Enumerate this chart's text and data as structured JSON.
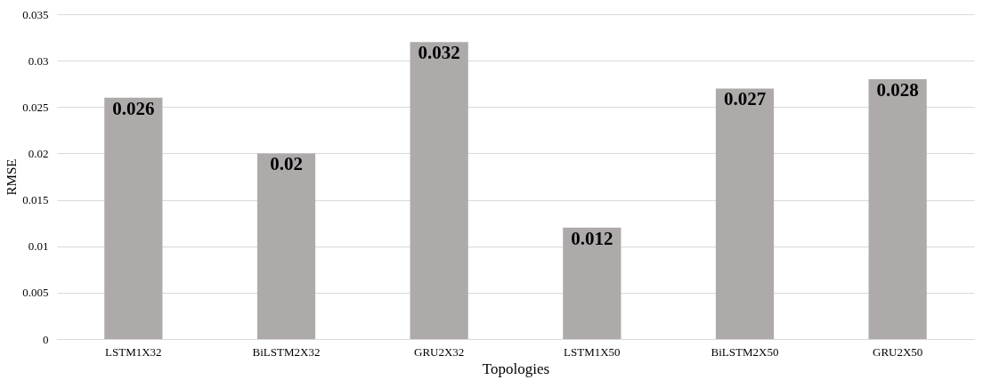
{
  "chart_data": {
    "type": "bar",
    "xlabel": "Topologies",
    "ylabel": "RMSE",
    "categories": [
      "LSTM1X32",
      "BiLSTM2X32",
      "GRU2X32",
      "LSTM1X50",
      "BiLSTM2X50",
      "GRU2X50"
    ],
    "values": [
      0.026,
      0.02,
      0.032,
      0.012,
      0.027,
      0.028
    ],
    "color": "#aeaaaa",
    "ylim": [
      0,
      0.035
    ],
    "yticks": [
      0,
      0.005,
      0.01,
      0.015,
      0.02,
      0.025,
      0.03,
      0.035
    ],
    "grid": "y",
    "data_labels": true
  }
}
